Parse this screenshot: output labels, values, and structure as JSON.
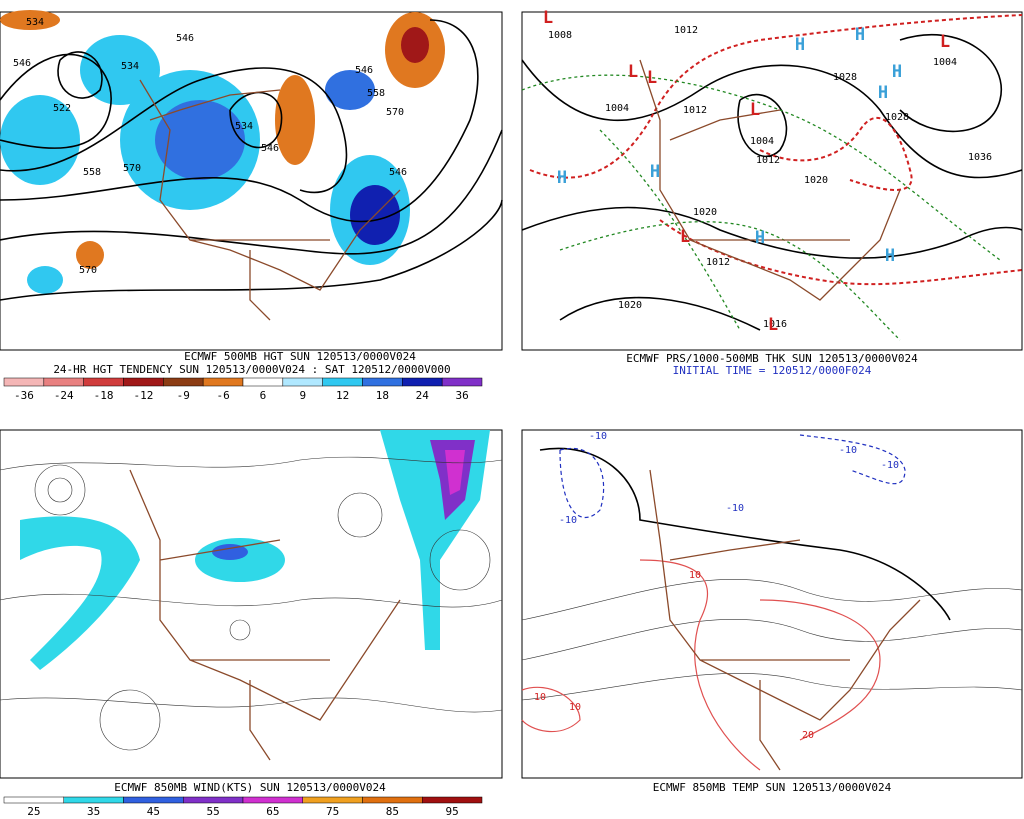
{
  "panels": [
    {
      "captions": [
        "ECMWF 500MB HGT SUN 120513/0000V024",
        "24-HR HGT TENDENCY SUN 120513/0000V024 : SAT 120512/0000V000"
      ],
      "contour_labels": [
        "534",
        "546",
        "546",
        "534",
        "522",
        "546",
        "558",
        "570",
        "534",
        "546",
        "558",
        "570",
        "570",
        "546"
      ],
      "colorbar": {
        "labels": [
          -36,
          -24,
          -18,
          -12,
          -9,
          -6,
          6,
          9,
          12,
          18,
          24,
          36
        ],
        "colors": [
          "#f4b6b6",
          "#e88080",
          "#d03c3c",
          "#a01818",
          "#8c3c14",
          "#e07820",
          "#ffffff",
          "#b0e8ff",
          "#30c8f0",
          "#3070e0",
          "#1020b0",
          "#8030c8"
        ]
      }
    },
    {
      "captions": [
        "ECMWF PRS/1000-500MB THK SUN 120513/0000V024",
        "INITIAL TIME = 120512/0000F024"
      ],
      "contour_labels": [
        "1008",
        "1012",
        "1028",
        "1004",
        "1004",
        "1012",
        "1028",
        "1036",
        "1004",
        "1012",
        "1020",
        "1020",
        "1012",
        "1020",
        "1016"
      ],
      "pressure_centers": [
        "H",
        "H",
        "H",
        "H",
        "H",
        "H",
        "H",
        "H",
        "L",
        "L",
        "L",
        "L",
        "L",
        "L",
        "L"
      ]
    },
    {
      "captions": [
        "ECMWF 850MB WIND(KTS) SUN 120513/0000V024"
      ],
      "colorbar": {
        "labels": [
          25,
          35,
          45,
          55,
          65,
          75,
          85,
          95
        ],
        "colors": [
          "#ffffff",
          "#30d8e8",
          "#3060e0",
          "#8030c8",
          "#d030d0",
          "#f0a020",
          "#e07010",
          "#a01010"
        ]
      }
    },
    {
      "captions": [
        "ECMWF 850MB TEMP SUN 120513/0000V024"
      ],
      "contour_labels": [
        "-10",
        "-10",
        "-10",
        "-10",
        "-10",
        "10",
        "20",
        "10",
        "10"
      ]
    }
  ]
}
